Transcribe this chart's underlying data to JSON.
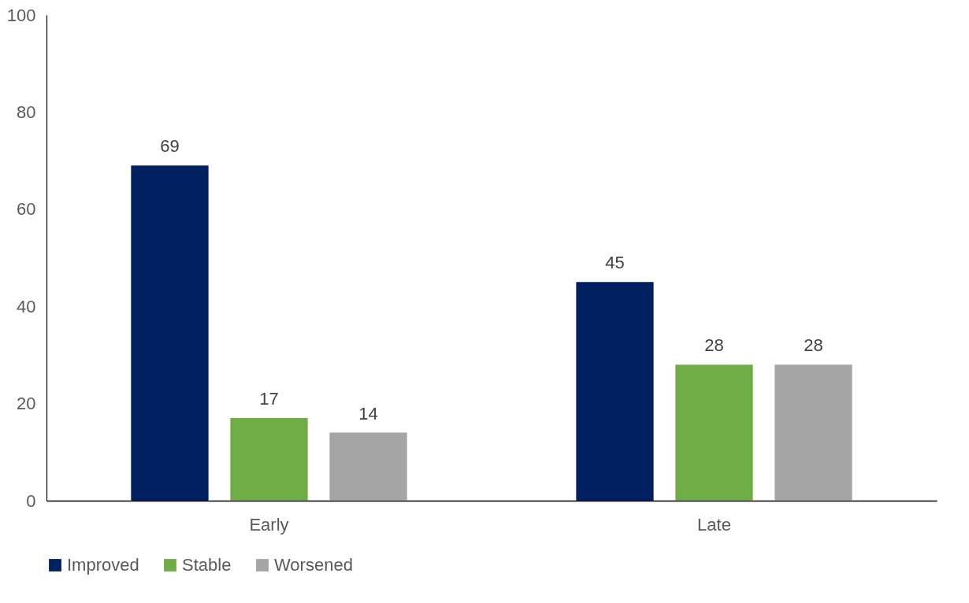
{
  "chart_data": {
    "type": "bar",
    "categories": [
      "Early",
      "Late"
    ],
    "series": [
      {
        "name": "Improved",
        "color": "#002060",
        "values": [
          69,
          45
        ]
      },
      {
        "name": "Stable",
        "color": "#70ad47",
        "values": [
          17,
          28
        ]
      },
      {
        "name": "Worsened",
        "color": "#a5a5a5",
        "values": [
          14,
          28
        ]
      }
    ],
    "ylim": [
      0,
      100
    ],
    "yticks": [
      0,
      20,
      40,
      60,
      80,
      100
    ],
    "data_labels": true,
    "legend": "bottom"
  }
}
